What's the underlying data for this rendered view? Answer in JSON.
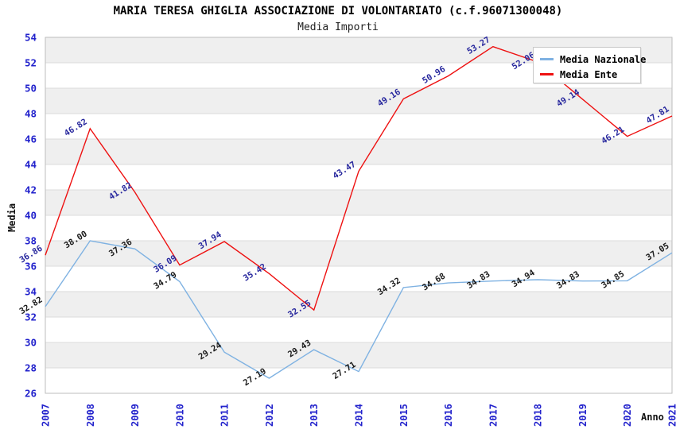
{
  "title": "MARIA TERESA GHIGLIA ASSOCIAZIONE DI VOLONTARIATO (c.f.96071300048)",
  "subtitle": "Media Importi",
  "legend": {
    "items": [
      {
        "label": "Media Nazionale",
        "color": "#7FB2E2"
      },
      {
        "label": "Media Ente",
        "color": "#EE1111"
      }
    ]
  },
  "axes": {
    "y_title": "Media",
    "x_title": "Anno"
  },
  "chart_data": {
    "type": "line",
    "title": "MARIA TERESA GHIGLIA ASSOCIAZIONE DI VOLONTARIATO (c.f.96071300048)",
    "subtitle": "Media Importi",
    "xlabel": "Anno",
    "ylabel": "Media",
    "ylim": [
      26,
      54
    ],
    "y_tick_step": 2,
    "grid": true,
    "alternating_bands": true,
    "legend_position": "top-right",
    "categories": [
      "2007",
      "2008",
      "2009",
      "2010",
      "2011",
      "2012",
      "2013",
      "2014",
      "2015",
      "2016",
      "2017",
      "2018",
      "2019",
      "2020",
      "2021"
    ],
    "series": [
      {
        "name": "Media Nazionale",
        "color": "#7FB2E2",
        "label_color": "#1A1A1A",
        "values": [
          32.82,
          38.0,
          37.36,
          34.79,
          29.24,
          27.19,
          29.43,
          27.71,
          34.32,
          34.68,
          34.83,
          34.94,
          34.83,
          34.85,
          37.05
        ]
      },
      {
        "name": "Media Ente",
        "color": "#EE1111",
        "label_color": "#28289E",
        "values": [
          36.86,
          46.82,
          41.82,
          36.09,
          37.94,
          35.42,
          32.55,
          43.47,
          49.16,
          50.96,
          53.27,
          52.06,
          49.14,
          46.21,
          47.81
        ]
      }
    ],
    "style": {
      "band_color": "#EFEFEF",
      "grid_color": "#DBDBDB",
      "plot_border_color": "#BEBEBE",
      "tick_label_color": "#2222CC",
      "value_label_rotation_deg": -32
    }
  }
}
